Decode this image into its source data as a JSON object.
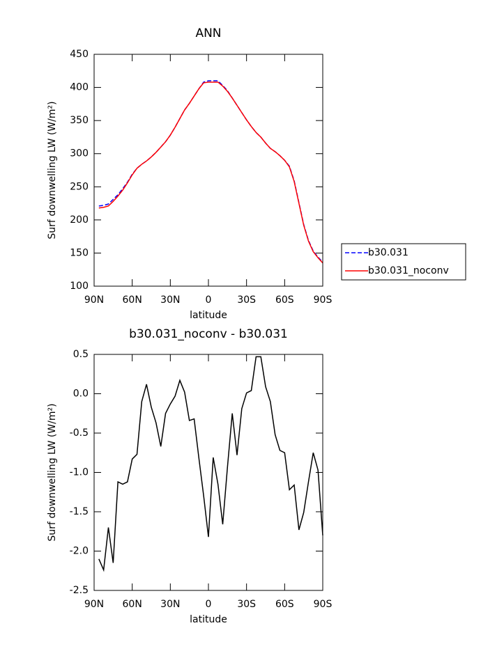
{
  "chart_data": [
    {
      "type": "line",
      "title": "ANN",
      "x_label": "latitude",
      "y_label": "Surf downwelling LW (W/m²)",
      "x": [
        86.25,
        82.5,
        78.75,
        75,
        71.25,
        67.5,
        63.75,
        60,
        56.25,
        52.5,
        48.75,
        45,
        41.25,
        37.5,
        33.75,
        30,
        26.25,
        22.5,
        18.75,
        15,
        11.25,
        7.5,
        3.75,
        0,
        -3.75,
        -7.5,
        -11.25,
        -15,
        -18.75,
        -22.5,
        -26.25,
        -30,
        -33.75,
        -37.5,
        -41.25,
        -45,
        -48.75,
        -52.5,
        -56.25,
        -60,
        -63.75,
        -67.5,
        -71.25,
        -75,
        -78.75,
        -82.5,
        -86.25,
        -90
      ],
      "series": [
        {
          "name": "b30.031",
          "color": "#0000ff",
          "linestyle": "dashed",
          "values": [
            221,
            222,
            224,
            231,
            238,
            247,
            257,
            269,
            278,
            284,
            289,
            295,
            302,
            310,
            318,
            328,
            340,
            353,
            366,
            376,
            387,
            398,
            408,
            410,
            410,
            410,
            403,
            395,
            384,
            373,
            362,
            351,
            341,
            332,
            325,
            316,
            308,
            303,
            297,
            290,
            281,
            259,
            226,
            193,
            169,
            153,
            144,
            136
          ]
        },
        {
          "name": "b30.031_noconv",
          "color": "#ff0000",
          "linestyle": "solid",
          "values": [
            218,
            219,
            221,
            228,
            236,
            245,
            256,
            268,
            278,
            284,
            289,
            295,
            302,
            310,
            318,
            328,
            340,
            353,
            366,
            376,
            387,
            398,
            407,
            408,
            408,
            408,
            402,
            394,
            384,
            373,
            362,
            351,
            341,
            332,
            325,
            316,
            308,
            303,
            297,
            290,
            280,
            258,
            225,
            192,
            168,
            152,
            143,
            135
          ]
        }
      ],
      "xlim": [
        90,
        -90
      ],
      "xticks": [
        {
          "value": 90,
          "label": "90N"
        },
        {
          "value": 60,
          "label": "60N"
        },
        {
          "value": 30,
          "label": "30N"
        },
        0,
        {
          "value": -30,
          "label": "30S"
        },
        {
          "value": -60,
          "label": "60S"
        },
        {
          "value": -90,
          "label": "90S"
        }
      ],
      "ylim": [
        100,
        450
      ],
      "yticks": [
        100,
        150,
        200,
        250,
        300,
        350,
        400,
        450
      ],
      "legend": "right"
    },
    {
      "type": "line",
      "title": "b30.031_noconv - b30.031",
      "x_label": "latitude",
      "y_label": "Surf downwelling LW (W/m²)",
      "x": [
        86.25,
        82.5,
        78.75,
        75,
        71.25,
        67.5,
        63.75,
        60,
        56.25,
        52.5,
        48.75,
        45,
        41.25,
        37.5,
        33.75,
        30,
        26.25,
        22.5,
        18.75,
        15,
        11.25,
        7.5,
        3.75,
        0,
        -3.75,
        -7.5,
        -11.25,
        -15,
        -18.75,
        -22.5,
        -26.25,
        -30,
        -33.75,
        -37.5,
        -41.25,
        -45,
        -48.75,
        -52.5,
        -56.25,
        -60,
        -63.75,
        -67.5,
        -71.25,
        -75,
        -78.75,
        -82.5,
        -86.25,
        -90
      ],
      "series": [
        {
          "color": "#000000",
          "linestyle": "solid",
          "values": [
            -2.1,
            -2.24,
            -1.7,
            -2.15,
            -1.12,
            -1.15,
            -1.12,
            -0.83,
            -0.77,
            -0.1,
            0.12,
            -0.17,
            -0.37,
            -0.67,
            -0.25,
            -0.13,
            -0.03,
            0.17,
            0.02,
            -0.34,
            -0.32,
            -0.82,
            -1.3,
            -1.82,
            -0.81,
            -1.15,
            -1.66,
            -0.93,
            -0.25,
            -0.78,
            -0.19,
            0.01,
            0.04,
            0.47,
            0.47,
            0.09,
            -0.1,
            -0.52,
            -0.72,
            -0.75,
            -1.22,
            -1.16,
            -1.73,
            -1.51,
            -1.12,
            -0.75,
            -0.97,
            -1.8
          ]
        }
      ],
      "xlim": [
        90,
        -90
      ],
      "xticks": [
        {
          "value": 90,
          "label": "90N"
        },
        {
          "value": 60,
          "label": "60N"
        },
        {
          "value": 30,
          "label": "30N"
        },
        0,
        {
          "value": -30,
          "label": "30S"
        },
        {
          "value": -60,
          "label": "60S"
        },
        {
          "value": -90,
          "label": "90S"
        }
      ],
      "ylim": [
        -2.5,
        0.5
      ],
      "yticks": [
        -2.5,
        {
          "value": -2,
          "label": "-2.0"
        },
        -1.5,
        {
          "value": -1,
          "label": "-1.0"
        },
        -0.5,
        {
          "value": 0,
          "label": "0.0"
        },
        0.5
      ]
    }
  ]
}
